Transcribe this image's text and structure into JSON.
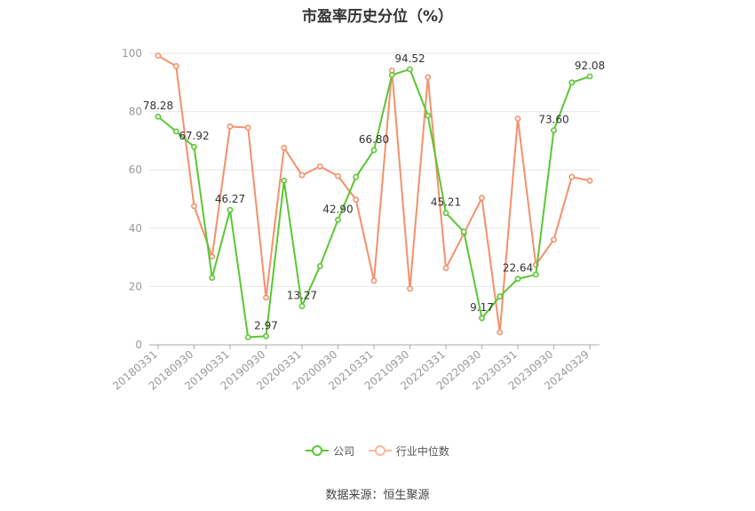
{
  "chart_data": {
    "type": "line",
    "title": "市盈率历史分位（%）",
    "ylim": [
      0,
      100
    ],
    "yticks": [
      0,
      20,
      40,
      60,
      80,
      100
    ],
    "x": [
      "20180331",
      "20180630",
      "20180930",
      "20181231",
      "20190331",
      "20190630",
      "20190930",
      "20191231",
      "20200331",
      "20200630",
      "20200930",
      "20201231",
      "20210331",
      "20210630",
      "20210930",
      "20211231",
      "20220331",
      "20220630",
      "20220930",
      "20221231",
      "20230331",
      "20230630",
      "20230930",
      "20231231",
      "20240329"
    ],
    "xtick_labels": [
      "20180331",
      "20180930",
      "20190331",
      "20190930",
      "20200331",
      "20200930",
      "20210331",
      "20210930",
      "20220331",
      "20220930",
      "20230331",
      "20230930",
      "20240329"
    ],
    "series": [
      {
        "name": "公司",
        "color": "#5ac733",
        "values": [
          78.28,
          73.2,
          67.92,
          23.0,
          46.27,
          2.6,
          2.97,
          56.3,
          13.27,
          27.0,
          42.9,
          57.6,
          66.8,
          92.6,
          94.52,
          78.6,
          45.21,
          38.8,
          9.17,
          16.6,
          22.64,
          24.1,
          73.6,
          90.0,
          92.08
        ],
        "labels": {
          "0": "78.28",
          "2": "67.92",
          "4": "46.27",
          "6": "2.97",
          "8": "13.27",
          "10": "42.90",
          "12": "66.80",
          "14": "94.52",
          "16": "45.21",
          "18": "9.17",
          "20": "22.64",
          "22": "73.60",
          "24": "92.08"
        }
      },
      {
        "name": "行业中位数",
        "color": "#f4906b",
        "values": [
          99.2,
          95.6,
          47.6,
          30.3,
          74.9,
          74.5,
          16.2,
          67.6,
          58.2,
          61.2,
          57.9,
          49.8,
          22.0,
          94.1,
          19.3,
          91.8,
          26.3,
          38.2,
          50.4,
          4.3,
          77.6,
          27.4,
          36.1,
          57.6,
          56.3
        ]
      }
    ],
    "legend_position": "bottom",
    "grid": true,
    "source": "数据来源：恒生聚源"
  }
}
